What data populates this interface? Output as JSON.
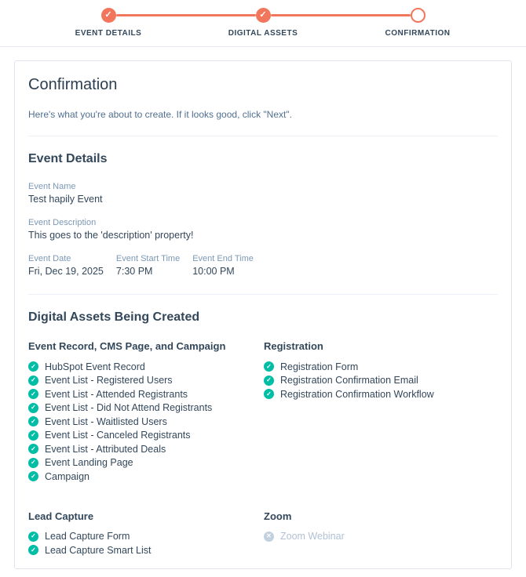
{
  "stepper": {
    "steps": [
      {
        "label": "EVENT DETAILS",
        "state": "complete"
      },
      {
        "label": "DIGITAL ASSETS",
        "state": "complete"
      },
      {
        "label": "CONFIRMATION",
        "state": "current"
      }
    ]
  },
  "page": {
    "title": "Confirmation",
    "subtitle": "Here's what you're about to create. If it looks good, click \"Next\"."
  },
  "event_details": {
    "heading": "Event Details",
    "fields": [
      {
        "label": "Event Name",
        "value": "Test hapily Event"
      },
      {
        "label": "Event Description",
        "value": "This goes to the 'description' property!"
      }
    ],
    "schedule": [
      {
        "label": "Event Date",
        "value": "Fri, Dec 19, 2025"
      },
      {
        "label": "Event Start Time",
        "value": "7:30 PM"
      },
      {
        "label": "Event End Time",
        "value": "10:00 PM"
      }
    ]
  },
  "digital_assets": {
    "heading": "Digital Assets Being Created",
    "groups": [
      {
        "heading": "Event Record, CMS Page, and Campaign",
        "items": [
          {
            "label": "HubSpot Event Record",
            "status": "created"
          },
          {
            "label": "Event List - Registered Users",
            "status": "created"
          },
          {
            "label": "Event List - Attended Registrants",
            "status": "created"
          },
          {
            "label": "Event List - Did Not Attend Registrants",
            "status": "created"
          },
          {
            "label": "Event List - Waitlisted Users",
            "status": "created"
          },
          {
            "label": "Event List - Canceled Registrants",
            "status": "created"
          },
          {
            "label": "Event List - Attributed Deals",
            "status": "created"
          },
          {
            "label": "Event Landing Page",
            "status": "created"
          },
          {
            "label": "Campaign",
            "status": "created"
          }
        ]
      },
      {
        "heading": "Registration",
        "items": [
          {
            "label": "Registration Form",
            "status": "created"
          },
          {
            "label": "Registration Confirmation Email",
            "status": "created"
          },
          {
            "label": "Registration Confirmation Workflow",
            "status": "created"
          }
        ]
      },
      {
        "heading": "Lead Capture",
        "items": [
          {
            "label": "Lead Capture Form",
            "status": "created"
          },
          {
            "label": "Lead Capture Smart List",
            "status": "created"
          }
        ]
      },
      {
        "heading": "Zoom",
        "items": [
          {
            "label": "Zoom Webinar",
            "status": "skipped"
          }
        ]
      }
    ]
  },
  "colors": {
    "accent": "#f2765c",
    "success": "#00bda5",
    "heading_text": "#33475b",
    "label_text": "#7c98b6",
    "subtitle_text": "#516f90",
    "disabled_text": "#b0c1d4",
    "card_border": "#dfe3eb",
    "divider": "#eaf0f6"
  }
}
